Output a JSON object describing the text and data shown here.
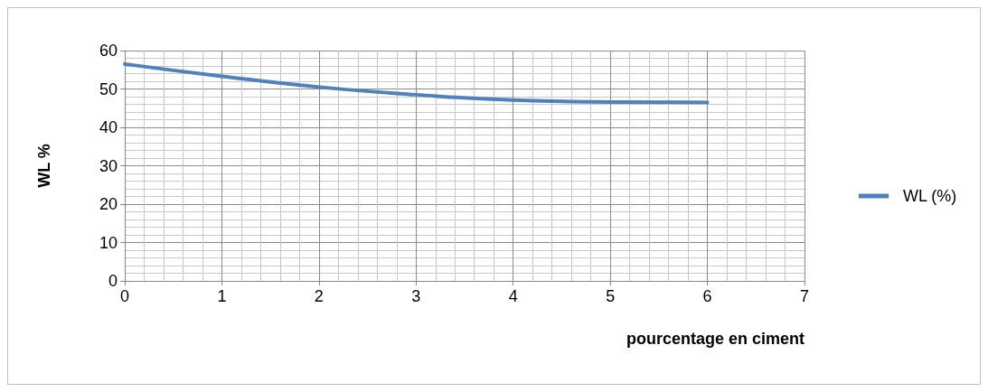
{
  "chart_data": {
    "type": "line",
    "xlabel": "pourcentage en ciment",
    "ylabel": "WL %",
    "x": [
      0,
      1,
      2,
      3,
      4,
      5,
      6
    ],
    "series": [
      {
        "name": "WL (%)",
        "color": "#4f81bd",
        "values": [
          56.5,
          53.3,
          50.5,
          48.5,
          47.1,
          46.6,
          46.5
        ]
      }
    ],
    "xlim": [
      0,
      7
    ],
    "xticks": [
      0,
      1,
      2,
      3,
      4,
      5,
      6,
      7
    ],
    "ylim": [
      0,
      60
    ],
    "yticks": [
      0,
      10,
      20,
      30,
      40,
      50,
      60
    ],
    "grid": true,
    "legend": "right",
    "marker": "none"
  }
}
